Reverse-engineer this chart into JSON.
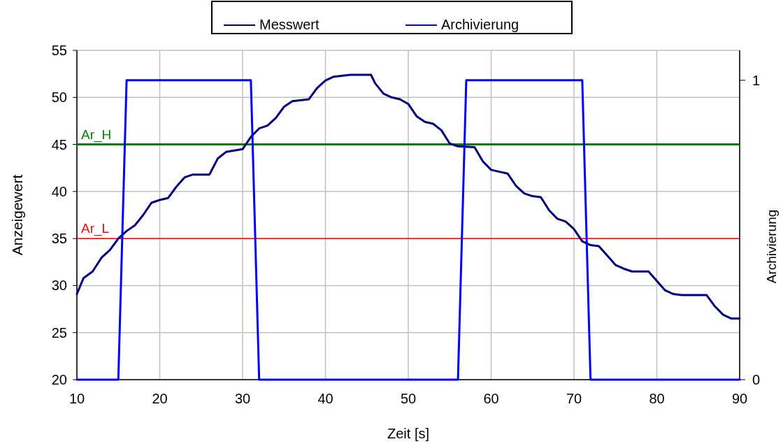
{
  "chart_data": {
    "type": "line",
    "xlabel": "Zeit [s]",
    "ylabel": "Anzeigewert",
    "y2label": "Archivierung",
    "xlim": [
      10,
      90
    ],
    "xticks": [
      10,
      20,
      30,
      40,
      50,
      60,
      70,
      80,
      90
    ],
    "ylim": [
      20,
      55
    ],
    "yticks": [
      20,
      25,
      30,
      35,
      40,
      45,
      50,
      55
    ],
    "y2lim": [
      0,
      1.1
    ],
    "y2ticks": [
      0,
      1
    ],
    "grid": true,
    "legend": "top",
    "line_style": "solid",
    "series": [
      {
        "name": "Messwert",
        "color": "#000080",
        "x": [
          10,
          10.8,
          11.9,
          13,
          14,
          15,
          16,
          17,
          18,
          19,
          20,
          21,
          22,
          23,
          24,
          26,
          27,
          28,
          30,
          31,
          32,
          33,
          34,
          35,
          36,
          38,
          39,
          40,
          41,
          43,
          45.5,
          46,
          47,
          48,
          49,
          50,
          51,
          52,
          53,
          54,
          55,
          56,
          58,
          59,
          60,
          61,
          62,
          63,
          64,
          65,
          66,
          67,
          68,
          69,
          70,
          71,
          72,
          73,
          74,
          75,
          76,
          77,
          79,
          80,
          81,
          82,
          83,
          86,
          87,
          88,
          89,
          90
        ],
        "values": [
          29.1,
          30.8,
          31.5,
          33,
          33.8,
          35,
          35.8,
          36.4,
          37.5,
          38.8,
          39.1,
          39.3,
          40.5,
          41.5,
          41.8,
          41.8,
          43.5,
          44.2,
          44.5,
          45.8,
          46.7,
          47,
          47.8,
          49,
          49.6,
          49.8,
          51,
          51.8,
          52.2,
          52.4,
          52.4,
          51.5,
          50.4,
          50,
          49.8,
          49.3,
          48,
          47.4,
          47.2,
          46.5,
          45.1,
          44.8,
          44.7,
          43.2,
          42.3,
          42.1,
          41.9,
          40.6,
          39.8,
          39.5,
          39.4,
          38,
          37.1,
          36.8,
          36,
          34.7,
          34.3,
          34.2,
          33.2,
          32.2,
          31.8,
          31.5,
          31.5,
          30.5,
          29.5,
          29.1,
          29,
          29,
          27.8,
          26.9,
          26.5,
          26.5
        ]
      },
      {
        "name": "Archivierung",
        "color": "#0000ff",
        "axis": "y2",
        "x": [
          10,
          15,
          16,
          31,
          32,
          56,
          57,
          71,
          72,
          90
        ],
        "values": [
          0,
          0,
          1,
          1,
          0,
          0,
          1,
          1,
          0,
          0
        ]
      }
    ],
    "ref_lines": [
      {
        "axis": "y",
        "value": 45,
        "label": "Ar_H",
        "color": "#008000"
      },
      {
        "axis": "y",
        "value": 35,
        "label": "Ar_L",
        "color": "#ff0000"
      }
    ]
  }
}
